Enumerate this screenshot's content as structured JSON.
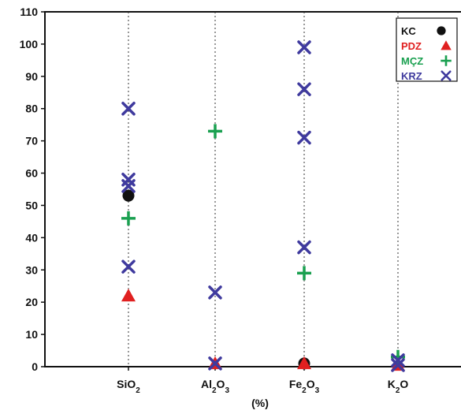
{
  "chart_data": {
    "type": "scatter",
    "title": "",
    "xlabel": "(%)",
    "ylabel": "",
    "categories": [
      "SiO2",
      "Al2O3",
      "Fe2O3",
      "K2O"
    ],
    "category_labels": [
      {
        "base": "SiO",
        "sub": "2",
        "tail": ""
      },
      {
        "base": "Al",
        "sub": "2",
        "tail": "O",
        "sub2": "3"
      },
      {
        "base": "Fe",
        "sub": "2",
        "tail": "O",
        "sub2": "3"
      },
      {
        "base": "K",
        "sub": "2",
        "tail": "O"
      }
    ],
    "ylim": [
      0,
      110
    ],
    "yticks": [
      0,
      10,
      20,
      30,
      40,
      50,
      60,
      70,
      80,
      90,
      100,
      110
    ],
    "grid": "vertical dotted lines at categories",
    "legend_position": "top-right",
    "series": [
      {
        "name": "KC",
        "marker": "circle",
        "color": "#111111",
        "points": [
          {
            "category": "SiO2",
            "y": 53
          },
          {
            "category": "Fe2O3",
            "y": 1
          }
        ]
      },
      {
        "name": "PDZ",
        "marker": "triangle",
        "color": "#e02020",
        "points": [
          {
            "category": "SiO2",
            "y": 22
          },
          {
            "category": "Al2O3",
            "y": 1
          },
          {
            "category": "Fe2O3",
            "y": 1
          },
          {
            "category": "K2O",
            "y": 0.5
          }
        ]
      },
      {
        "name": "MÇZ",
        "marker": "plus",
        "color": "#1aa050",
        "points": [
          {
            "category": "SiO2",
            "y": 46
          },
          {
            "category": "Al2O3",
            "y": 73
          },
          {
            "category": "Fe2O3",
            "y": 29
          },
          {
            "category": "K2O",
            "y": 3
          }
        ]
      },
      {
        "name": "KRZ",
        "marker": "cross",
        "color": "#3f3a9e",
        "points": [
          {
            "category": "SiO2",
            "y": 80
          },
          {
            "category": "SiO2",
            "y": 58
          },
          {
            "category": "SiO2",
            "y": 56
          },
          {
            "category": "SiO2",
            "y": 31
          },
          {
            "category": "Al2O3",
            "y": 23
          },
          {
            "category": "Al2O3",
            "y": 1
          },
          {
            "category": "Fe2O3",
            "y": 99
          },
          {
            "category": "Fe2O3",
            "y": 86
          },
          {
            "category": "Fe2O3",
            "y": 71
          },
          {
            "category": "Fe2O3",
            "y": 37
          },
          {
            "category": "K2O",
            "y": 2
          },
          {
            "category": "K2O",
            "y": 0.5
          }
        ]
      }
    ]
  }
}
